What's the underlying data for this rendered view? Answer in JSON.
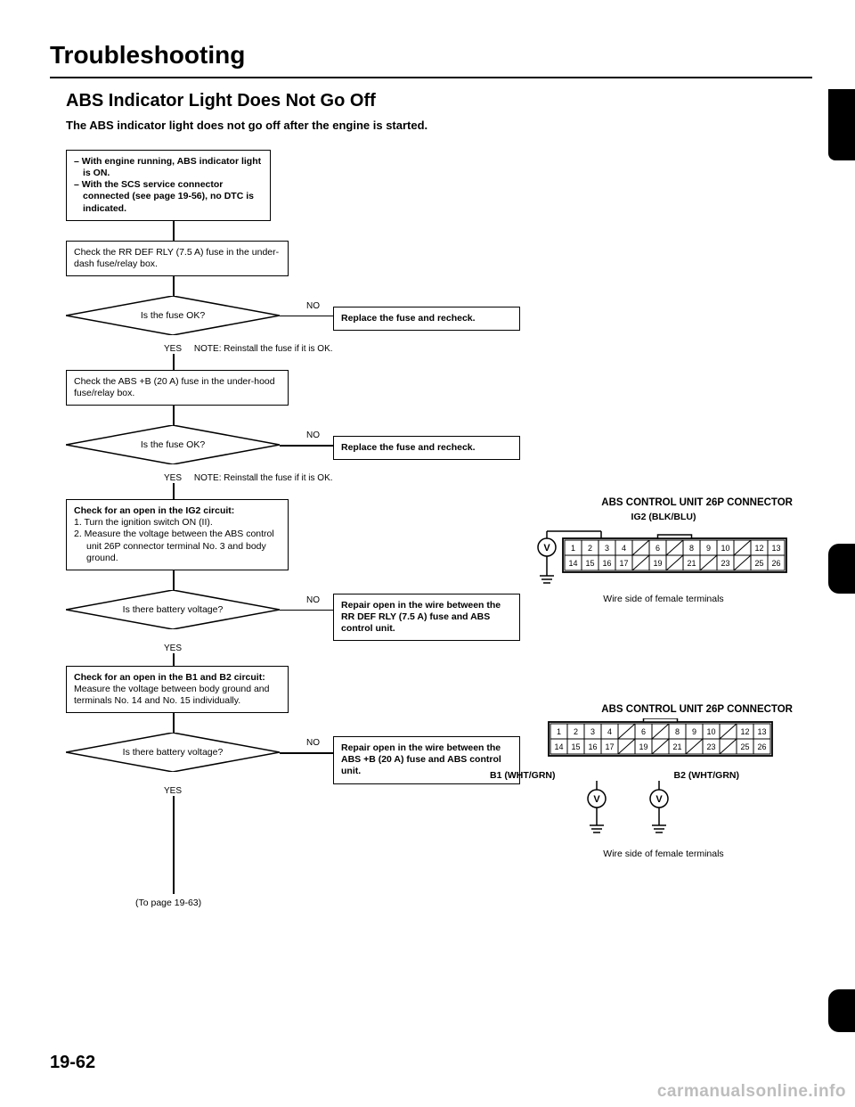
{
  "title": "Troubleshooting",
  "subtitle": "ABS Indicator Light Does Not Go Off",
  "intro": "The ABS indicator light does not go off after the engine is started.",
  "flow": {
    "start1": "With engine running, ABS indicator light is ON.",
    "start2": "With the SCS service connector connected (see page 19-56), no DTC is indicated.",
    "check1": "Check the RR DEF RLY (7.5 A) fuse in the under-dash fuse/relay box.",
    "dec1": "Is the fuse OK?",
    "no": "NO",
    "yes": "YES",
    "act1": "Replace the fuse and recheck.",
    "note1": "NOTE: Reinstall the fuse if it is OK.",
    "check2": "Check the ABS +B (20 A) fuse in the under-hood fuse/relay box.",
    "dec2": "Is the fuse OK?",
    "act2": "Replace the fuse and recheck.",
    "note2": "NOTE: Reinstall the fuse if it is OK.",
    "check3_title": "Check for an open in the IG2 circuit:",
    "check3_1": "1. Turn the ignition switch ON (II).",
    "check3_2": "2. Measure the voltage between the ABS control unit 26P connector terminal No. 3 and body ground.",
    "dec3": "Is there battery voltage?",
    "act3": "Repair open in the wire between the RR DEF RLY (7.5 A) fuse and ABS control unit.",
    "check4_title": "Check for an open in the B1 and B2 circuit:",
    "check4_body": "Measure the voltage between body ground and terminals No. 14 and No. 15 individually.",
    "dec4": "Is there battery voltage?",
    "act4": "Repair open in the wire between the ABS +B (20 A) fuse and ABS control unit.",
    "to_page": "(To page 19-63)"
  },
  "conn1": {
    "title": "ABS CONTROL UNIT 26P CONNECTOR",
    "pin_label": "IG2 (BLK/BLU)",
    "caption": "Wire side of female terminals",
    "top_row": [
      "1",
      "2",
      "3",
      "4",
      "",
      "6",
      "",
      "8",
      "9",
      "10",
      "",
      "12",
      "13"
    ],
    "bot_row": [
      "14",
      "15",
      "16",
      "17",
      "",
      "19",
      "",
      "21",
      "",
      "23",
      "",
      "25",
      "26"
    ]
  },
  "conn2": {
    "title": "ABS CONTROL UNIT 26P CONNECTOR",
    "b1": "B1 (WHT/GRN)",
    "b2": "B2 (WHT/GRN)",
    "caption": "Wire side of female terminals",
    "top_row": [
      "1",
      "2",
      "3",
      "4",
      "",
      "6",
      "",
      "8",
      "9",
      "10",
      "",
      "12",
      "13"
    ],
    "bot_row": [
      "14",
      "15",
      "16",
      "17",
      "",
      "19",
      "",
      "21",
      "",
      "23",
      "",
      "25",
      "26"
    ]
  },
  "page_num": "19-62",
  "watermark": "carmanualsonline.info",
  "colors": {
    "line": "#000000",
    "bg": "#ffffff",
    "wm": "#bdbdbd"
  }
}
